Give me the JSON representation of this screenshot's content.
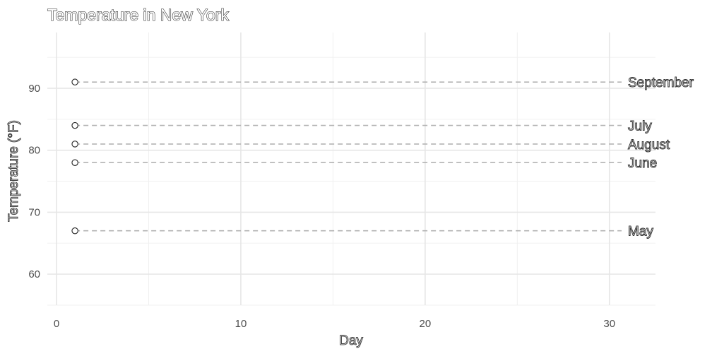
{
  "chart_data": {
    "type": "scatter",
    "title": "Temperature in New York",
    "xlabel": "Day",
    "ylabel": "Temperature (°F)",
    "xlim": [
      -0.5,
      32.5
    ],
    "ylim": [
      55,
      99
    ],
    "x_ticks": [
      0,
      10,
      20,
      30
    ],
    "y_ticks": [
      60,
      70,
      80,
      90
    ],
    "grid": true,
    "series": [
      {
        "name": "May",
        "x": 1,
        "y": 67
      },
      {
        "name": "June",
        "x": 1,
        "y": 78
      },
      {
        "name": "July",
        "x": 1,
        "y": 84
      },
      {
        "name": "August",
        "x": 1,
        "y": 81
      },
      {
        "name": "September",
        "x": 1,
        "y": 91
      }
    ],
    "reference_lines": [
      {
        "label": "September",
        "y": 91
      },
      {
        "label": "July",
        "y": 84
      },
      {
        "label": "August",
        "y": 81
      },
      {
        "label": "June",
        "y": 78
      },
      {
        "label": "May",
        "y": 67
      }
    ]
  }
}
